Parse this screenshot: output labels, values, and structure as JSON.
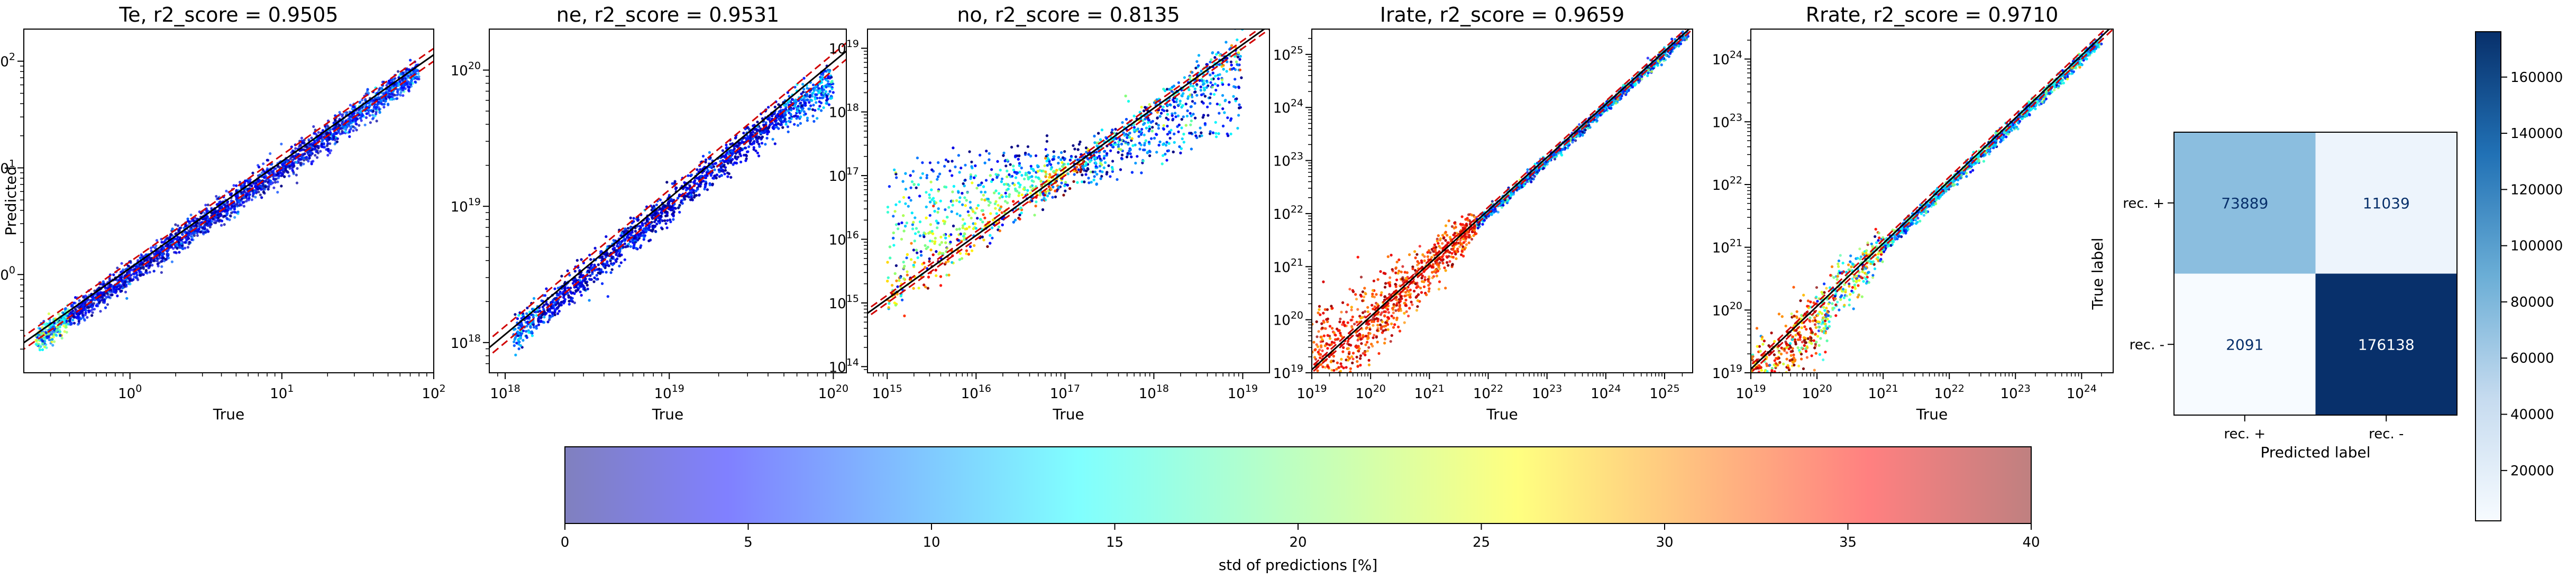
{
  "chart_data": [
    {
      "type": "scatter",
      "title": "Te, r2_score = 0.9505",
      "xlabel": "True",
      "ylabel": "Predicted",
      "xscale": "log",
      "yscale": "log",
      "xlim": [
        0.2,
        100
      ],
      "ylim": [
        0.12,
        200
      ],
      "x_ticks": [
        {
          "value": 1,
          "label": "10",
          "exp": "0"
        },
        {
          "value": 10,
          "label": "10",
          "exp": "1"
        },
        {
          "value": 100,
          "label": "10",
          "exp": "2"
        }
      ],
      "y_ticks": [
        {
          "value": 1,
          "label": "10",
          "exp": "0"
        },
        {
          "value": 10,
          "label": "10",
          "exp": "1"
        },
        {
          "value": 100,
          "label": "10",
          "exp": "2"
        }
      ],
      "r2_score": 0.9505,
      "points_desc": "tight diagonal cloud colored by std",
      "spread": 0.06,
      "low_std_color_bias": "blue",
      "reference_lines": [
        "y=x (black)",
        "offset (red dashed)"
      ]
    },
    {
      "type": "scatter",
      "title": "ne, r2_score = 0.9531",
      "xlabel": "True",
      "ylabel": "",
      "xscale": "log",
      "yscale": "log",
      "xlim": [
        8e+17,
        1.2e+20
      ],
      "ylim": [
        6e+17,
        2e+20
      ],
      "x_ticks": [
        {
          "value": 1e+18,
          "label": "10",
          "exp": "18"
        },
        {
          "value": 1e+19,
          "label": "10",
          "exp": "19"
        },
        {
          "value": 1e+20,
          "label": "10",
          "exp": "20"
        }
      ],
      "y_ticks": [
        {
          "value": 1e+18,
          "label": "10",
          "exp": "18"
        },
        {
          "value": 1e+19,
          "label": "10",
          "exp": "19"
        },
        {
          "value": 1e+20,
          "label": "10",
          "exp": "20"
        }
      ],
      "r2_score": 0.9531
    },
    {
      "type": "scatter",
      "title": "no, r2_score = 0.8135",
      "xlabel": "True",
      "ylabel": "",
      "xscale": "log",
      "yscale": "log",
      "xlim": [
        600000000000000.0,
        2e+19
      ],
      "ylim": [
        80000000000000.0,
        2e+19
      ],
      "x_ticks": [
        {
          "value": 1000000000000000.0,
          "label": "10",
          "exp": "15"
        },
        {
          "value": 1e+16,
          "label": "10",
          "exp": "16"
        },
        {
          "value": 1e+17,
          "label": "10",
          "exp": "17"
        },
        {
          "value": 1e+18,
          "label": "10",
          "exp": "18"
        },
        {
          "value": 1e+19,
          "label": "10",
          "exp": "19"
        }
      ],
      "y_ticks": [
        {
          "value": 100000000000000.0,
          "label": "10",
          "exp": "14"
        },
        {
          "value": 1000000000000000.0,
          "label": "10",
          "exp": "15"
        },
        {
          "value": 1e+16,
          "label": "10",
          "exp": "16"
        },
        {
          "value": 1e+17,
          "label": "10",
          "exp": "17"
        },
        {
          "value": 1e+18,
          "label": "10",
          "exp": "18"
        },
        {
          "value": 1e+19,
          "label": "10",
          "exp": "19"
        }
      ],
      "r2_score": 0.8135
    },
    {
      "type": "scatter",
      "title": "Irate, r2_score = 0.9659",
      "xlabel": "True",
      "ylabel": "",
      "xscale": "log",
      "yscale": "log",
      "xlim": [
        1e+19,
        3e+25
      ],
      "ylim": [
        1e+19,
        3e+25
      ],
      "x_ticks": [
        {
          "value": 1e+19,
          "label": "10",
          "exp": "19"
        },
        {
          "value": 1e+20,
          "label": "10",
          "exp": "20"
        },
        {
          "value": 1e+21,
          "label": "10",
          "exp": "21"
        },
        {
          "value": 1e+22,
          "label": "10",
          "exp": "22"
        },
        {
          "value": 1e+23,
          "label": "10",
          "exp": "23"
        },
        {
          "value": 1e+24,
          "label": "10",
          "exp": "24"
        },
        {
          "value": 1e+25,
          "label": "10",
          "exp": "25"
        }
      ],
      "y_ticks": [
        {
          "value": 1e+19,
          "label": "10",
          "exp": "19"
        },
        {
          "value": 1e+20,
          "label": "10",
          "exp": "20"
        },
        {
          "value": 1e+21,
          "label": "10",
          "exp": "21"
        },
        {
          "value": 1e+22,
          "label": "10",
          "exp": "22"
        },
        {
          "value": 1e+23,
          "label": "10",
          "exp": "23"
        },
        {
          "value": 1e+24,
          "label": "10",
          "exp": "24"
        },
        {
          "value": 1e+25,
          "label": "10",
          "exp": "25"
        }
      ],
      "r2_score": 0.9659
    },
    {
      "type": "scatter",
      "title": "Rrate, r2_score = 0.9710",
      "xlabel": "True",
      "ylabel": "",
      "xscale": "log",
      "yscale": "log",
      "xlim": [
        1e+19,
        3e+24
      ],
      "ylim": [
        1e+19,
        3e+24
      ],
      "x_ticks": [
        {
          "value": 1e+19,
          "label": "10",
          "exp": "19"
        },
        {
          "value": 1e+20,
          "label": "10",
          "exp": "20"
        },
        {
          "value": 1e+21,
          "label": "10",
          "exp": "21"
        },
        {
          "value": 1e+22,
          "label": "10",
          "exp": "22"
        },
        {
          "value": 1e+23,
          "label": "10",
          "exp": "23"
        },
        {
          "value": 1e+24,
          "label": "10",
          "exp": "24"
        }
      ],
      "y_ticks": [
        {
          "value": 1e+19,
          "label": "10",
          "exp": "19"
        },
        {
          "value": 1e+20,
          "label": "10",
          "exp": "20"
        },
        {
          "value": 1e+21,
          "label": "10",
          "exp": "21"
        },
        {
          "value": 1e+22,
          "label": "10",
          "exp": "22"
        },
        {
          "value": 1e+23,
          "label": "10",
          "exp": "23"
        },
        {
          "value": 1e+24,
          "label": "10",
          "exp": "24"
        }
      ],
      "r2_score": 0.971
    },
    {
      "type": "heatmap",
      "subtype": "confusion_matrix",
      "xlabel": "Predicted label",
      "ylabel": "True label",
      "x_categories": [
        "rec. +",
        "rec. -"
      ],
      "y_categories": [
        "rec. +",
        "rec. -"
      ],
      "values": [
        [
          73889,
          11039
        ],
        [
          2091,
          176138
        ]
      ],
      "colormap": "Blues",
      "colorbar_ticks": [
        20000,
        40000,
        60000,
        80000,
        100000,
        120000,
        140000,
        160000
      ],
      "colorbar_range": [
        2091,
        176138
      ]
    },
    {
      "type": "colorbar",
      "label": "std of predictions [%]",
      "colormap": "jet (alpha 0.5)",
      "range": [
        0,
        40
      ],
      "ticks": [
        0,
        5,
        10,
        15,
        20,
        25,
        30,
        35,
        40
      ]
    }
  ]
}
